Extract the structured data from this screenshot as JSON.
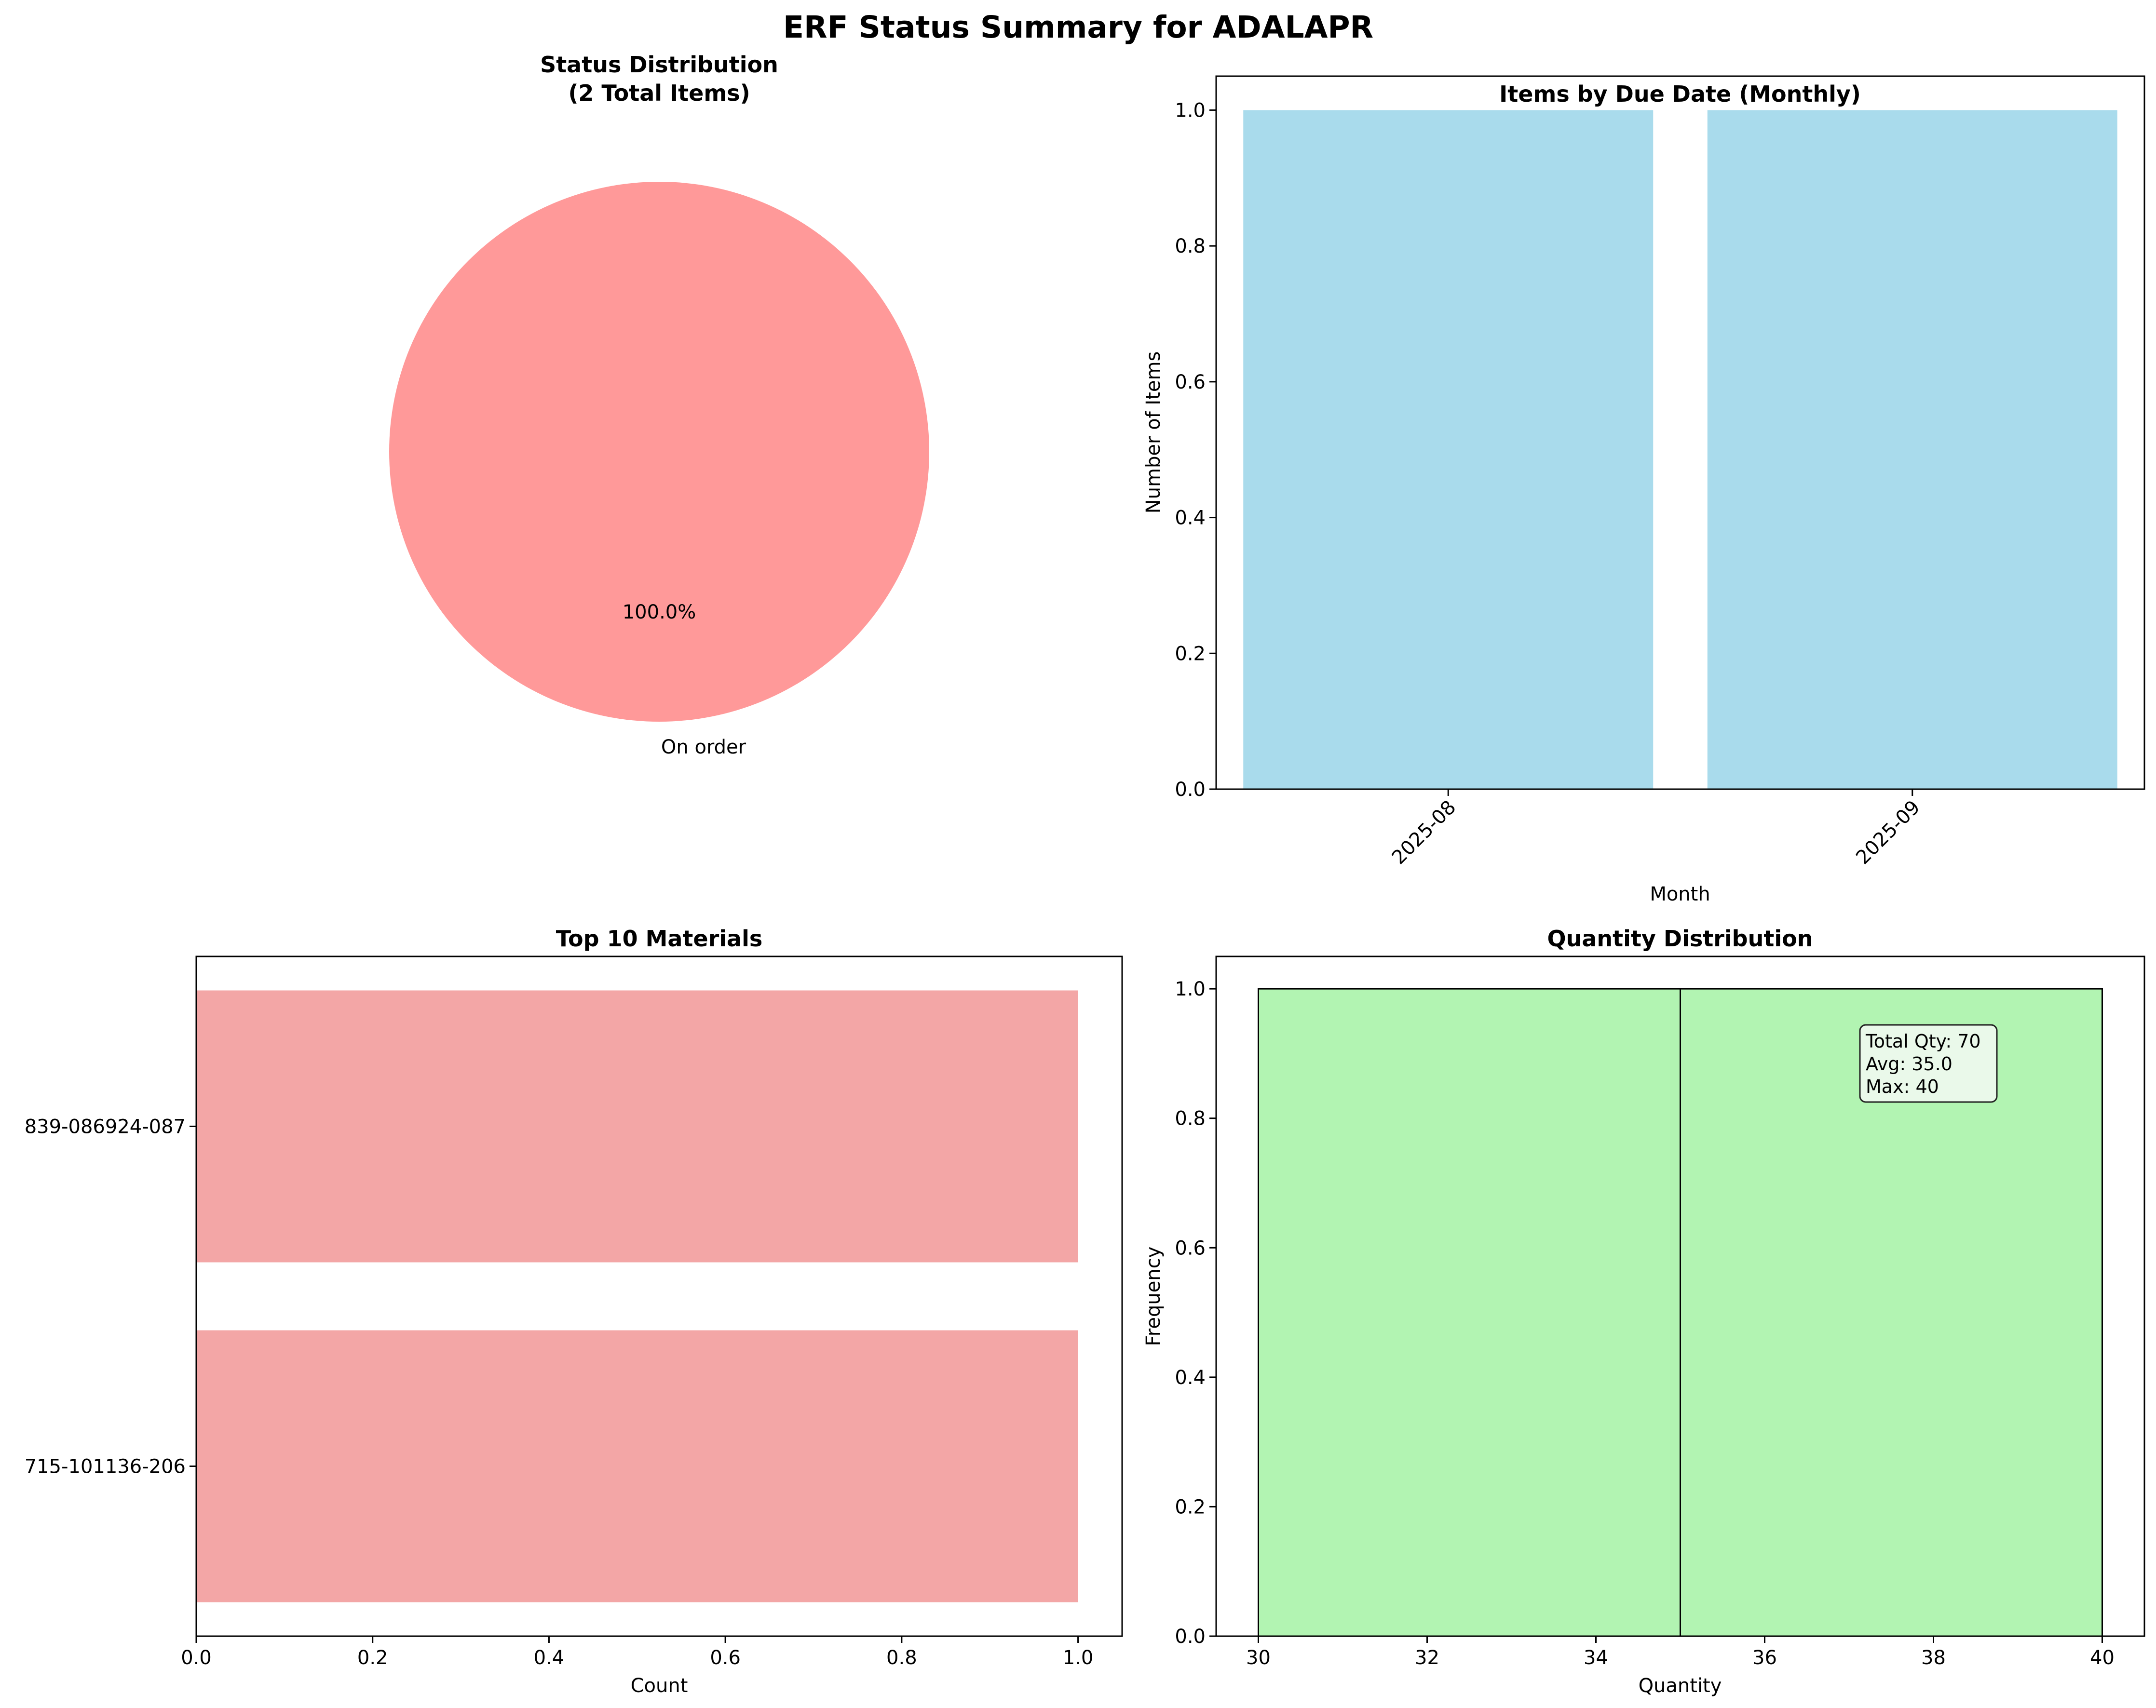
{
  "figure": {
    "title": "ERF Status Summary for ADALAPR"
  },
  "chart_data": [
    {
      "type": "pie",
      "title_line1": "Status Distribution",
      "title_line2": "(2 Total Items)",
      "labels": [
        "On order"
      ],
      "values": [
        2
      ],
      "pct_labels": [
        "100.0%"
      ],
      "colors": [
        "#ff9999"
      ]
    },
    {
      "type": "bar",
      "title": "Items by Due Date (Monthly)",
      "categories": [
        "2025-08",
        "2025-09"
      ],
      "values": [
        1,
        1
      ],
      "xlabel": "Month",
      "ylabel": "Number of Items",
      "ylim": [
        0,
        1.05
      ],
      "yticks": [
        0.0,
        0.2,
        0.4,
        0.6,
        0.8,
        1.0
      ],
      "ytick_labels": [
        "0.0",
        "0.2",
        "0.4",
        "0.6",
        "0.8",
        "1.0"
      ],
      "color": "#a9dbec"
    },
    {
      "type": "barh",
      "title": "Top 10 Materials",
      "categories": [
        "715-101136-206",
        "839-086924-087"
      ],
      "values": [
        1,
        1
      ],
      "xlabel": "Count",
      "ylabel": "",
      "xlim": [
        0,
        1.05
      ],
      "xticks": [
        0.0,
        0.2,
        0.4,
        0.6,
        0.8,
        1.0
      ],
      "xtick_labels": [
        "0.0",
        "0.2",
        "0.4",
        "0.6",
        "0.8",
        "1.0"
      ],
      "color": "#f3a6a6"
    },
    {
      "type": "histogram",
      "title": "Quantity Distribution",
      "bins": [
        30,
        35,
        40
      ],
      "counts": [
        1,
        1
      ],
      "xlabel": "Quantity",
      "ylabel": "Frequency",
      "xlim": [
        29.5,
        40.5
      ],
      "ylim": [
        0,
        1.05
      ],
      "xticks": [
        30,
        32,
        34,
        36,
        38,
        40
      ],
      "xtick_labels": [
        "30",
        "32",
        "34",
        "36",
        "38",
        "40"
      ],
      "yticks": [
        0.0,
        0.2,
        0.4,
        0.6,
        0.8,
        1.0
      ],
      "ytick_labels": [
        "0.0",
        "0.2",
        "0.4",
        "0.6",
        "0.8",
        "1.0"
      ],
      "color": "#b2f4b2",
      "annotation": [
        "Total Qty: 70",
        "Avg: 35.0",
        "Max: 40"
      ]
    }
  ]
}
